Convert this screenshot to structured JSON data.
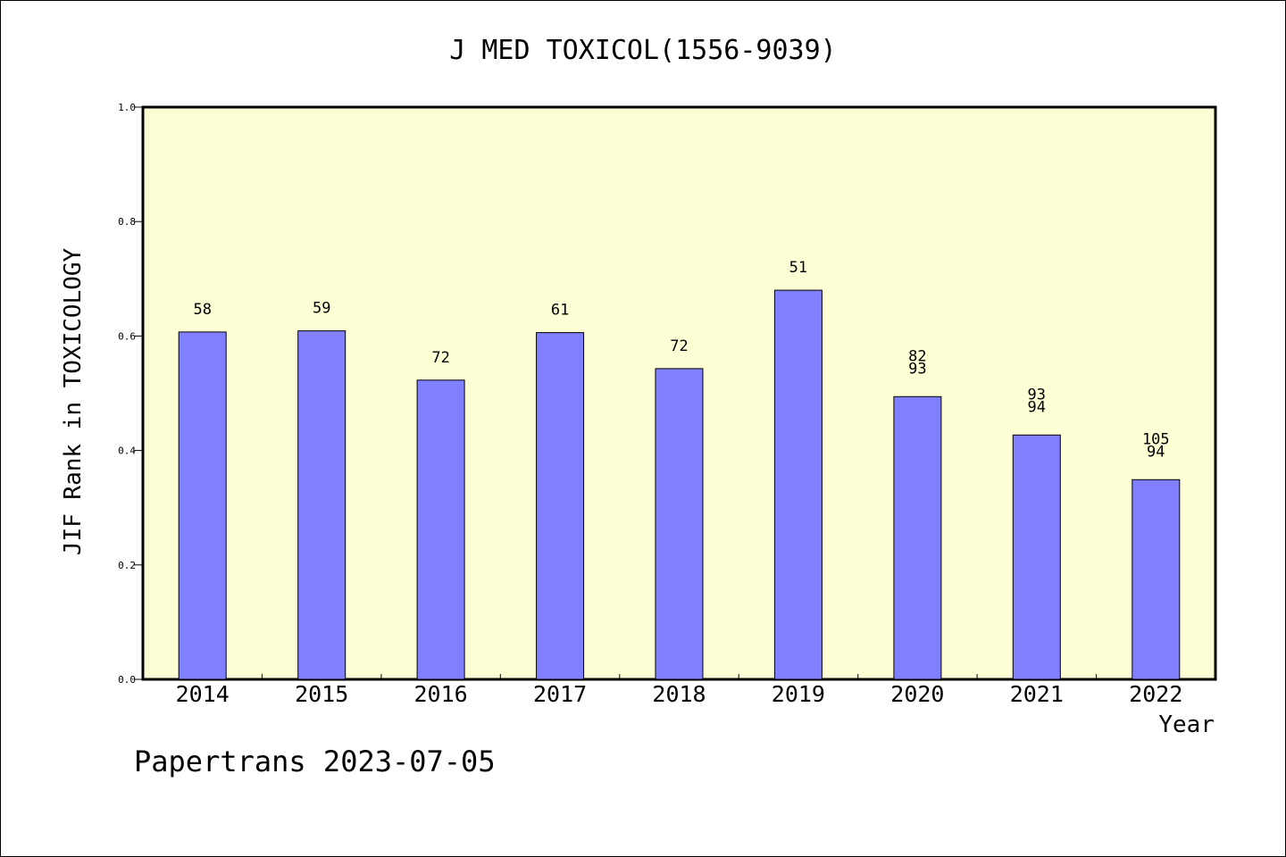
{
  "chart_data": {
    "type": "bar",
    "title": "J MED TOXICOL(1556-9039)",
    "xlabel": "Year",
    "ylabel": "JIF Rank in TOXICOLOGY",
    "footer": "Papertrans 2023-07-05",
    "categories": [
      "2014",
      "2015",
      "2016",
      "2017",
      "2018",
      "2019",
      "2020",
      "2021",
      "2022"
    ],
    "values": [
      0.607,
      0.609,
      0.523,
      0.606,
      0.543,
      0.68,
      0.494,
      0.427,
      0.349
    ],
    "labels": [
      [
        "58"
      ],
      [
        "59"
      ],
      [
        "72"
      ],
      [
        "61"
      ],
      [
        "72"
      ],
      [
        "51"
      ],
      [
        "82",
        "93"
      ],
      [
        "93",
        "94"
      ],
      [
        "105",
        "94"
      ]
    ],
    "ylim": [
      0,
      1.0
    ],
    "yticks": [
      "0.0",
      "0.2",
      "0.4",
      "0.6",
      "0.8",
      "1.0"
    ],
    "grid": false,
    "colors": {
      "bar": "#8080ff",
      "plot_bg": "#ffffd5",
      "axis": "#000000"
    }
  }
}
